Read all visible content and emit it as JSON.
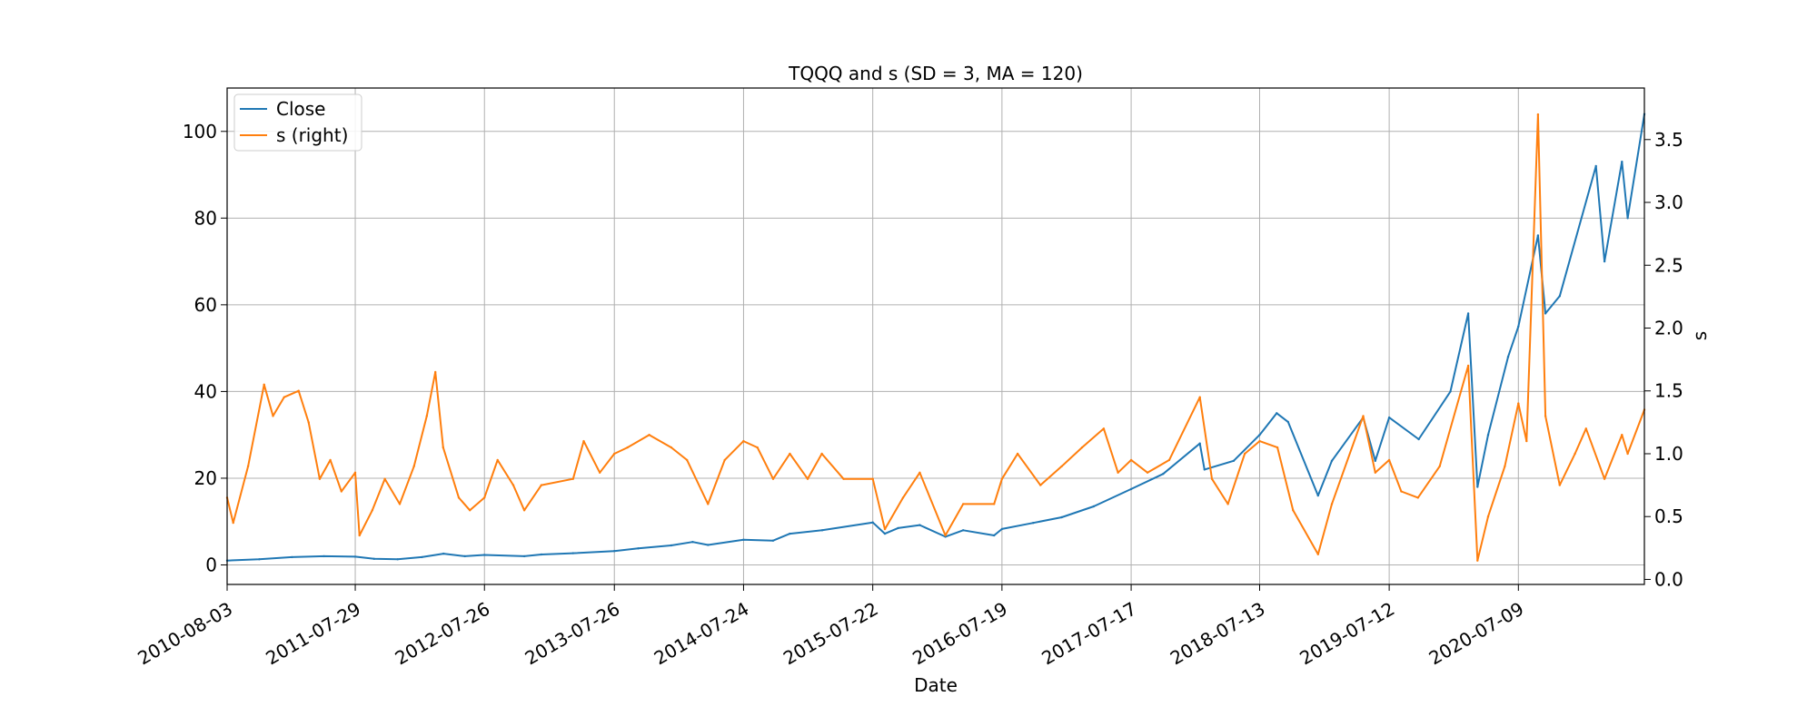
{
  "chart_data": {
    "type": "line",
    "title": "TQQQ and s (SD = 3, MA = 120)",
    "xlabel": "Date",
    "ylabel": "",
    "ylabel_right": "s",
    "grid": true,
    "legend_position": "upper-left",
    "x_tick_labels": [
      "2010-08-03",
      "2011-07-29",
      "2012-07-26",
      "2013-07-26",
      "2014-07-24",
      "2015-07-22",
      "2016-07-19",
      "2017-07-17",
      "2018-07-13",
      "2019-07-12",
      "2020-07-09"
    ],
    "x_range": [
      "2010-08-03",
      "2021-06-28"
    ],
    "y_left": {
      "ticks": [
        "0",
        "20",
        "40",
        "60",
        "80",
        "100"
      ],
      "range": [
        -4.5,
        110
      ]
    },
    "y_right": {
      "ticks": [
        "0.0",
        "0.5",
        "1.0",
        "1.5",
        "2.0",
        "2.5",
        "3.0",
        "3.5"
      ],
      "range": [
        -0.04,
        3.91
      ]
    },
    "series": [
      {
        "name": "Close",
        "axis": "left",
        "color": "#1f77b4",
        "points": [
          [
            "2010-08-03",
            1.0
          ],
          [
            "2010-11-01",
            1.3
          ],
          [
            "2011-02-01",
            1.8
          ],
          [
            "2011-05-02",
            2.0
          ],
          [
            "2011-07-29",
            1.9
          ],
          [
            "2011-09-20",
            1.4
          ],
          [
            "2011-11-25",
            1.3
          ],
          [
            "2012-02-01",
            1.8
          ],
          [
            "2012-04-02",
            2.6
          ],
          [
            "2012-06-01",
            2.0
          ],
          [
            "2012-07-26",
            2.3
          ],
          [
            "2012-11-15",
            2.0
          ],
          [
            "2013-01-02",
            2.4
          ],
          [
            "2013-04-01",
            2.7
          ],
          [
            "2013-07-26",
            3.2
          ],
          [
            "2013-10-01",
            3.8
          ],
          [
            "2014-01-02",
            4.5
          ],
          [
            "2014-03-03",
            5.3
          ],
          [
            "2014-04-15",
            4.6
          ],
          [
            "2014-07-24",
            5.8
          ],
          [
            "2014-10-15",
            5.6
          ],
          [
            "2014-12-01",
            7.2
          ],
          [
            "2015-03-02",
            8.0
          ],
          [
            "2015-07-22",
            9.8
          ],
          [
            "2015-08-25",
            7.2
          ],
          [
            "2015-10-01",
            8.5
          ],
          [
            "2015-12-01",
            9.2
          ],
          [
            "2016-02-11",
            6.5
          ],
          [
            "2016-04-01",
            8.0
          ],
          [
            "2016-06-27",
            6.8
          ],
          [
            "2016-07-19",
            8.3
          ],
          [
            "2016-10-15",
            9.7
          ],
          [
            "2017-01-03",
            11.0
          ],
          [
            "2017-04-03",
            13.5
          ],
          [
            "2017-07-17",
            17.5
          ],
          [
            "2017-10-15",
            21.0
          ],
          [
            "2018-01-26",
            28.0
          ],
          [
            "2018-02-08",
            22.0
          ],
          [
            "2018-05-01",
            24.0
          ],
          [
            "2018-07-13",
            30.0
          ],
          [
            "2018-08-30",
            35.0
          ],
          [
            "2018-10-01",
            33.0
          ],
          [
            "2018-12-24",
            16.0
          ],
          [
            "2019-02-01",
            24.0
          ],
          [
            "2019-04-30",
            34.0
          ],
          [
            "2019-06-03",
            24.0
          ],
          [
            "2019-07-12",
            34.0
          ],
          [
            "2019-10-03",
            29.0
          ],
          [
            "2019-12-31",
            40.0
          ],
          [
            "2020-02-19",
            58.0
          ],
          [
            "2020-03-16",
            18.0
          ],
          [
            "2020-04-15",
            30.0
          ],
          [
            "2020-06-10",
            48.0
          ],
          [
            "2020-07-09",
            55.0
          ],
          [
            "2020-09-02",
            76.0
          ],
          [
            "2020-09-23",
            58.0
          ],
          [
            "2020-11-02",
            62.0
          ],
          [
            "2021-02-12",
            92.0
          ],
          [
            "2021-03-08",
            70.0
          ],
          [
            "2021-04-26",
            93.0
          ],
          [
            "2021-05-12",
            80.0
          ],
          [
            "2021-06-28",
            104.0
          ]
        ]
      },
      {
        "name": "s (right)",
        "axis": "right",
        "color": "#ff7f0e",
        "points": [
          [
            "2010-08-03",
            0.65
          ],
          [
            "2010-08-20",
            0.45
          ],
          [
            "2010-10-01",
            0.9
          ],
          [
            "2010-11-15",
            1.55
          ],
          [
            "2010-12-10",
            1.3
          ],
          [
            "2011-01-10",
            1.45
          ],
          [
            "2011-02-20",
            1.5
          ],
          [
            "2011-03-20",
            1.25
          ],
          [
            "2011-04-20",
            0.8
          ],
          [
            "2011-05-20",
            0.95
          ],
          [
            "2011-06-20",
            0.7
          ],
          [
            "2011-07-29",
            0.85
          ],
          [
            "2011-08-10",
            0.35
          ],
          [
            "2011-09-15",
            0.55
          ],
          [
            "2011-10-20",
            0.8
          ],
          [
            "2011-12-01",
            0.6
          ],
          [
            "2012-01-10",
            0.9
          ],
          [
            "2012-02-15",
            1.3
          ],
          [
            "2012-03-10",
            1.65
          ],
          [
            "2012-04-01",
            1.05
          ],
          [
            "2012-05-15",
            0.65
          ],
          [
            "2012-06-15",
            0.55
          ],
          [
            "2012-07-26",
            0.65
          ],
          [
            "2012-09-01",
            0.95
          ],
          [
            "2012-10-15",
            0.75
          ],
          [
            "2012-11-15",
            0.55
          ],
          [
            "2013-01-02",
            0.75
          ],
          [
            "2013-04-01",
            0.8
          ],
          [
            "2013-05-01",
            1.1
          ],
          [
            "2013-06-15",
            0.85
          ],
          [
            "2013-07-26",
            1.0
          ],
          [
            "2013-09-01",
            1.05
          ],
          [
            "2013-11-01",
            1.15
          ],
          [
            "2014-01-02",
            1.05
          ],
          [
            "2014-02-15",
            0.95
          ],
          [
            "2014-04-15",
            0.6
          ],
          [
            "2014-06-01",
            0.95
          ],
          [
            "2014-07-24",
            1.1
          ],
          [
            "2014-09-01",
            1.05
          ],
          [
            "2014-10-15",
            0.8
          ],
          [
            "2014-12-01",
            1.0
          ],
          [
            "2015-01-20",
            0.8
          ],
          [
            "2015-03-01",
            1.0
          ],
          [
            "2015-05-01",
            0.8
          ],
          [
            "2015-07-22",
            0.8
          ],
          [
            "2015-08-25",
            0.4
          ],
          [
            "2015-10-15",
            0.65
          ],
          [
            "2015-12-01",
            0.85
          ],
          [
            "2016-02-11",
            0.35
          ],
          [
            "2016-04-01",
            0.6
          ],
          [
            "2016-06-27",
            0.6
          ],
          [
            "2016-07-19",
            0.8
          ],
          [
            "2016-09-01",
            1.0
          ],
          [
            "2016-11-04",
            0.75
          ],
          [
            "2017-01-03",
            0.9
          ],
          [
            "2017-03-01",
            1.05
          ],
          [
            "2017-05-01",
            1.2
          ],
          [
            "2017-06-10",
            0.85
          ],
          [
            "2017-07-17",
            0.95
          ],
          [
            "2017-09-01",
            0.85
          ],
          [
            "2017-11-01",
            0.95
          ],
          [
            "2018-01-26",
            1.45
          ],
          [
            "2018-03-01",
            0.8
          ],
          [
            "2018-04-15",
            0.6
          ],
          [
            "2018-06-01",
            1.0
          ],
          [
            "2018-07-13",
            1.1
          ],
          [
            "2018-09-01",
            1.05
          ],
          [
            "2018-10-15",
            0.55
          ],
          [
            "2018-12-24",
            0.2
          ],
          [
            "2019-02-01",
            0.6
          ],
          [
            "2019-04-30",
            1.3
          ],
          [
            "2019-06-03",
            0.85
          ],
          [
            "2019-07-12",
            0.95
          ],
          [
            "2019-08-15",
            0.7
          ],
          [
            "2019-10-01",
            0.65
          ],
          [
            "2019-12-01",
            0.9
          ],
          [
            "2020-02-19",
            1.7
          ],
          [
            "2020-03-16",
            0.15
          ],
          [
            "2020-04-15",
            0.5
          ],
          [
            "2020-06-01",
            0.9
          ],
          [
            "2020-07-09",
            1.4
          ],
          [
            "2020-08-01",
            1.1
          ],
          [
            "2020-09-02",
            3.7
          ],
          [
            "2020-09-23",
            1.3
          ],
          [
            "2020-11-02",
            0.75
          ],
          [
            "2020-12-15",
            1.0
          ],
          [
            "2021-01-15",
            1.2
          ],
          [
            "2021-03-08",
            0.8
          ],
          [
            "2021-04-26",
            1.15
          ],
          [
            "2021-05-12",
            1.0
          ],
          [
            "2021-06-28",
            1.35
          ]
        ]
      }
    ]
  }
}
